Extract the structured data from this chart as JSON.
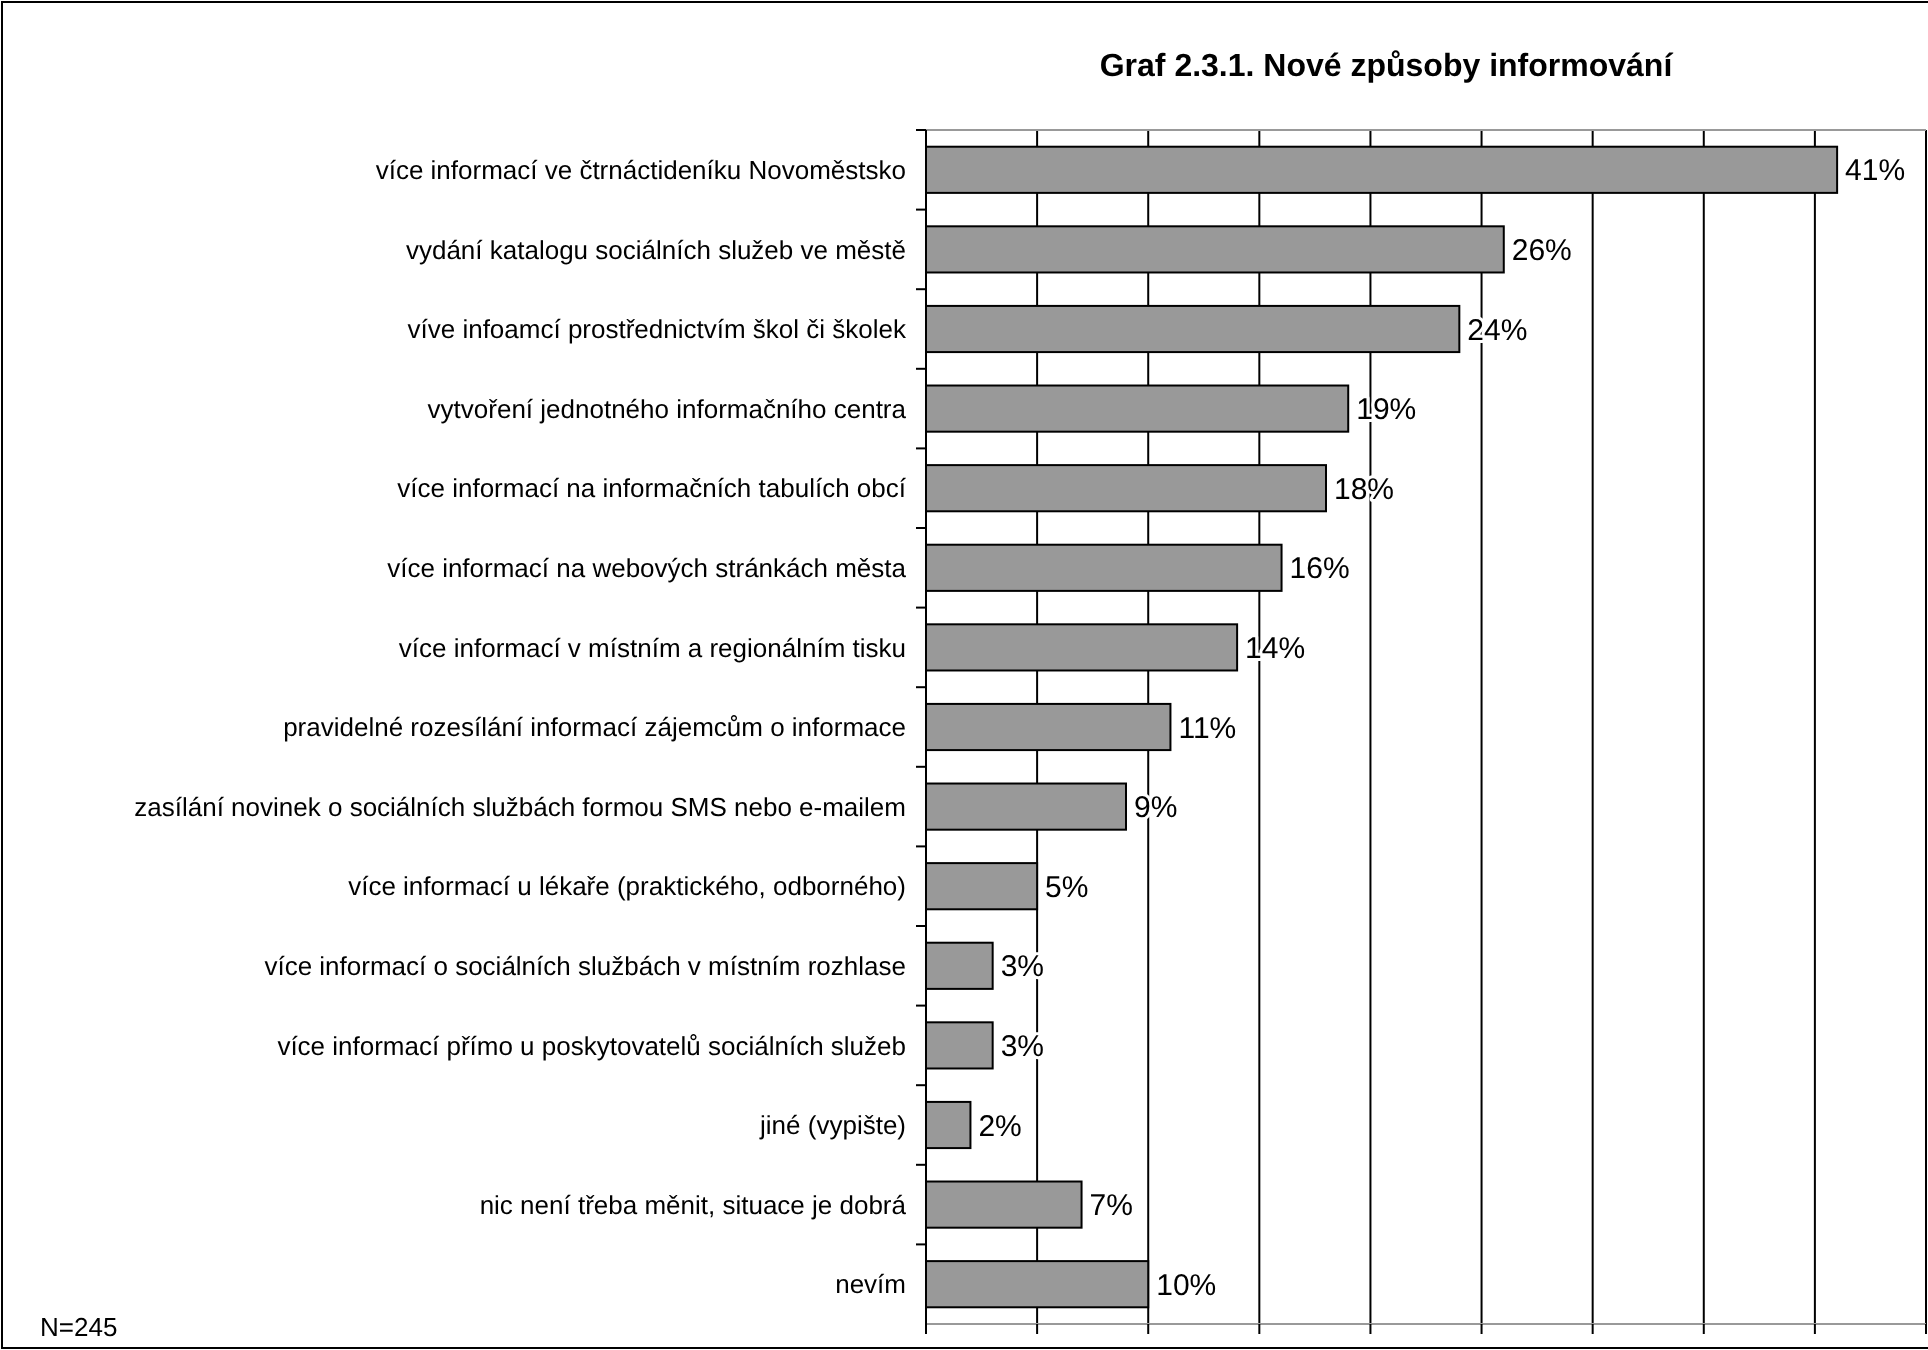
{
  "chart_data": {
    "type": "bar",
    "orientation": "horizontal",
    "title": "Graf 2.3.1. Nové způsoby informování",
    "categories": [
      "více informací ve čtrnáctideníku Novoměstsko",
      "vydání katalogu sociálních služeb ve městě",
      "víve infoamcí prostřednictvím škol či školek",
      "vytvoření jednotného informačního centra",
      "více informací na informačních tabulích obcí",
      "více informací na webových stránkách města",
      "více informací v místním a regionálním tisku",
      "pravidelné rozesílání informací zájemcům o informace",
      "zasílání novinek o sociálních službách formou SMS nebo e-mailem",
      "více informací u lékaře (praktického, odborného)",
      "více informací o sociálních službách v místním rozhlase",
      "více informací přímo u poskytovatelů sociálních služeb",
      "jiné (vypište)",
      "nic není třeba měnit, situace je dobrá",
      "nevím"
    ],
    "values": [
      41,
      26,
      24,
      19,
      18,
      16,
      14,
      11,
      9,
      5,
      3,
      3,
      2,
      7,
      10
    ],
    "value_labels": [
      "41%",
      "26%",
      "24%",
      "19%",
      "18%",
      "16%",
      "14%",
      "11%",
      "9%",
      "5%",
      "3%",
      "3%",
      "2%",
      "7%",
      "10%"
    ],
    "color": "#999999",
    "xlim": [
      0,
      45
    ],
    "xticks": [
      {
        "value": 0,
        "label": null
      },
      {
        "value": 5,
        "label": null
      },
      {
        "value": 10,
        "label": null
      },
      {
        "value": 15,
        "label": null
      },
      {
        "value": 20,
        "label": null
      },
      {
        "value": 25,
        "label": null
      },
      {
        "value": 30,
        "label": null
      },
      {
        "value": 35,
        "label": null
      },
      {
        "value": 40,
        "label": null
      },
      {
        "value": 45,
        "label": null
      }
    ],
    "tick_labels": "y",
    "grid": "x",
    "annotations": [
      "N=245"
    ]
  }
}
